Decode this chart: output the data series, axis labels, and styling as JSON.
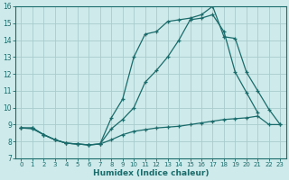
{
  "xlabel": "Humidex (Indice chaleur)",
  "bg_color": "#ceeaea",
  "grid_color": "#aacccc",
  "line_color": "#1a6b6b",
  "xlim": [
    -0.5,
    23.5
  ],
  "ylim": [
    7,
    16
  ],
  "xticks": [
    0,
    1,
    2,
    3,
    4,
    5,
    6,
    7,
    8,
    9,
    10,
    11,
    12,
    13,
    14,
    15,
    16,
    17,
    18,
    19,
    20,
    21,
    22,
    23
  ],
  "yticks": [
    7,
    8,
    9,
    10,
    11,
    12,
    13,
    14,
    15,
    16
  ],
  "line1_x": [
    0,
    1,
    2,
    3,
    4,
    5,
    6,
    7,
    8,
    9,
    10,
    11,
    12,
    13,
    14,
    15,
    16,
    17,
    18,
    19,
    20,
    21,
    22,
    23
  ],
  "line1_y": [
    8.8,
    8.8,
    8.4,
    8.1,
    7.9,
    7.85,
    7.8,
    7.85,
    8.1,
    8.4,
    8.6,
    8.7,
    8.8,
    8.85,
    8.9,
    9.0,
    9.1,
    9.2,
    9.3,
    9.35,
    9.4,
    9.5,
    9.0,
    9.0
  ],
  "line2_x": [
    0,
    1,
    2,
    3,
    4,
    5,
    6,
    7,
    8,
    9,
    10,
    11,
    12,
    13,
    14,
    15,
    16,
    17,
    18,
    19,
    20,
    21,
    22,
    23
  ],
  "line2_y": [
    8.8,
    8.8,
    8.4,
    8.1,
    7.9,
    7.85,
    7.8,
    7.85,
    9.4,
    10.5,
    13.0,
    14.35,
    14.5,
    15.1,
    15.2,
    15.3,
    15.5,
    16.0,
    14.2,
    14.1,
    12.1,
    11.0,
    9.9,
    9.0
  ],
  "line3_x": [
    0,
    1,
    2,
    3,
    4,
    5,
    6,
    7,
    8,
    9,
    10,
    11,
    12,
    13,
    14,
    15,
    16,
    17,
    18,
    19,
    20,
    21,
    22,
    23
  ],
  "line3_y": [
    8.8,
    8.75,
    8.4,
    8.1,
    7.9,
    7.85,
    7.8,
    7.85,
    8.75,
    9.3,
    10.0,
    11.5,
    12.2,
    13.0,
    14.0,
    15.2,
    15.3,
    15.5,
    14.5,
    12.1,
    10.9,
    9.7,
    null,
    null
  ]
}
